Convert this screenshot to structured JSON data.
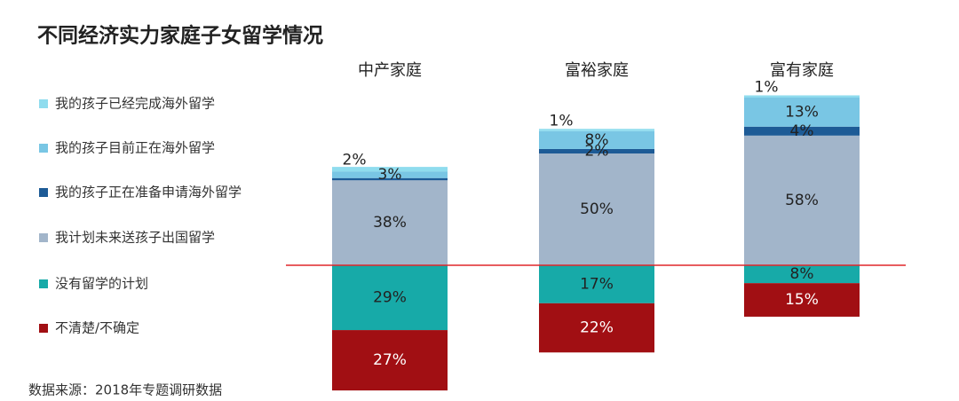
{
  "chart_data": {
    "type": "diverging-stacked-bar",
    "title": "不同经济实力家庭子女留学情况",
    "source": "数据来源：2018年专题调研数据",
    "categories": [
      "中产家庭",
      "富裕家庭",
      "富有家庭"
    ],
    "reference_line_color": "#e0262a",
    "series": [
      {
        "name": "我的孩子已经完成海外留学",
        "color": "#8fdcee",
        "direction": "up",
        "values": [
          2,
          1,
          1
        ],
        "value_labels": [
          "2%",
          "1%",
          "1%"
        ]
      },
      {
        "name": "我的孩子目前正在海外留学",
        "color": "#79c6e4",
        "direction": "up",
        "values": [
          3,
          8,
          13
        ],
        "value_labels": [
          "3%",
          "8%",
          "13%"
        ]
      },
      {
        "name": "我的孩子正在准备申请海外留学",
        "color": "#1d5b96",
        "direction": "up",
        "values": [
          1,
          2,
          4
        ],
        "value_labels": [
          null,
          "2%",
          "4%"
        ]
      },
      {
        "name": "我计划未来送孩子出国留学",
        "color": "#a2b5ca",
        "direction": "up",
        "values": [
          38,
          50,
          58
        ],
        "value_labels": [
          "38%",
          "50%",
          "58%"
        ]
      },
      {
        "name": "没有留学的计划",
        "color": "#17aaa8",
        "direction": "down",
        "values": [
          29,
          17,
          8
        ],
        "value_labels": [
          "29%",
          "17%",
          "8%"
        ]
      },
      {
        "name": "不清楚/不确定",
        "color": "#a10f13",
        "direction": "down",
        "values": [
          27,
          22,
          15
        ],
        "value_labels": [
          "27%",
          "22%",
          "15%"
        ]
      }
    ]
  }
}
